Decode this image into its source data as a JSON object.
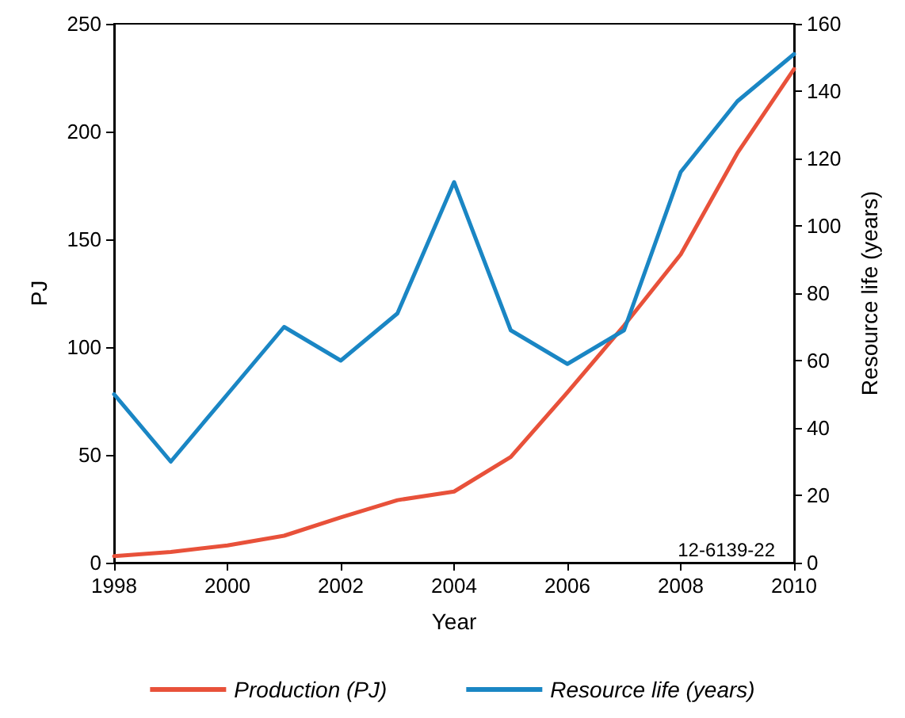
{
  "chart_data": {
    "type": "line",
    "xlabel": "Year",
    "ylabel": "PJ",
    "y2label": "Resource life (years)",
    "x": [
      1998,
      1999,
      2000,
      2001,
      2002,
      2003,
      2004,
      2005,
      2006,
      2007,
      2008,
      2009,
      2010
    ],
    "series": [
      {
        "name": "Production (PJ)",
        "color": "#e8513a",
        "values": [
          3,
          5,
          8,
          12.5,
          21,
          29,
          33,
          49,
          79,
          110,
          143,
          190,
          229
        ]
      },
      {
        "name": "Resource life (years)",
        "color": "#1a86c4",
        "axis": "y2",
        "values": [
          50,
          30,
          50,
          70,
          60,
          74,
          113,
          69,
          59,
          69,
          116,
          137,
          151
        ]
      }
    ],
    "xlim": [
      1998,
      2010
    ],
    "xticks": [
      1998,
      2000,
      2002,
      2004,
      2006,
      2008,
      2010
    ],
    "ylim": [
      0,
      250
    ],
    "yticks": [
      0,
      50,
      100,
      150,
      200,
      250
    ],
    "y2lim": [
      0,
      160
    ],
    "y2ticks": [
      0,
      20,
      40,
      60,
      80,
      100,
      120,
      140,
      160
    ],
    "annotations": [
      "12-6139-22"
    ],
    "grid": false,
    "legend": "bottom",
    "marker": "none",
    "line_style": "solid"
  }
}
